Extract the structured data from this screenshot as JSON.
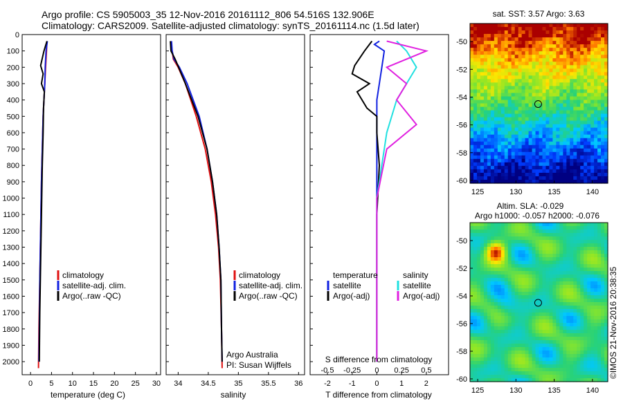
{
  "header": {
    "line1": "Argo profile: CS 5905003_35 12-Nov-2016 20161112_806 54.516S 132.906E",
    "line2": "Climatology: CARS2009. Satellite-adjusted climatology: synTS_20161114.nc (1.5d later)"
  },
  "credit": "©IMOS 21-Nov-2016 20:38:35",
  "colors": {
    "clim": "#e01010",
    "sat": "#1020e0",
    "argo": "#000000",
    "sal_sat": "#20e0e0",
    "sal_argo": "#e020e0"
  },
  "chart_data": [
    {
      "type": "line",
      "xlabel": "temperature (deg C)",
      "xlim": [
        -2,
        31
      ],
      "ylim": [
        2080,
        0
      ],
      "xticks": [
        "0",
        "5",
        "10",
        "15",
        "20",
        "25",
        "30"
      ],
      "yticks": [
        "0",
        "100",
        "200",
        "300",
        "400",
        "500",
        "600",
        "700",
        "800",
        "900",
        "1000",
        "1100",
        "1200",
        "1300",
        "1400",
        "1500",
        "1600",
        "1700",
        "1800",
        "1900",
        "2000"
      ],
      "legend": [
        "climatology",
        "satellite-adj. clim.",
        "Argo(..raw -QC)"
      ],
      "series": [
        {
          "name": "climatology",
          "x": [
            3.9,
            3.8,
            3.6,
            3.4,
            3.2,
            3.0,
            2.8,
            2.6,
            2.4,
            2.2,
            2.0,
            1.9
          ],
          "y": [
            40,
            100,
            200,
            300,
            400,
            500,
            700,
            900,
            1200,
            1500,
            1800,
            2040
          ]
        },
        {
          "name": "satellite-adj. clim.",
          "x": [
            4.0,
            3.7,
            3.5,
            3.4,
            3.2,
            3.0,
            2.8,
            2.6,
            2.4,
            2.2,
            2.1,
            2.0
          ],
          "y": [
            40,
            100,
            200,
            300,
            400,
            500,
            700,
            900,
            1200,
            1500,
            1800,
            2000
          ]
        },
        {
          "name": "Argo(..raw -QC)",
          "x": [
            3.9,
            3.2,
            2.4,
            3.0,
            2.6,
            3.3,
            3.1,
            3.0,
            2.8,
            2.6,
            2.4,
            2.2,
            2.1
          ],
          "y": [
            40,
            100,
            190,
            240,
            300,
            350,
            450,
            600,
            800,
            1100,
            1400,
            1700,
            2000
          ]
        }
      ]
    },
    {
      "type": "line",
      "xlabel": "salinity",
      "xlim": [
        33.8,
        36.1
      ],
      "ylim": [
        2080,
        0
      ],
      "xticks": [
        "34",
        "34.5",
        "35",
        "35.5",
        "36"
      ],
      "legend": [
        "climatology",
        "satellite-adj. clim.",
        "Argo(..raw -QC)"
      ],
      "annotation": [
        "Argo Australia",
        "PI: Susan Wijffels"
      ],
      "series": [
        {
          "name": "climatology",
          "x": [
            33.88,
            33.9,
            33.92,
            34.0,
            34.12,
            34.3,
            34.45,
            34.55,
            34.62,
            34.67,
            34.7,
            34.72,
            34.73
          ],
          "y": [
            40,
            100,
            150,
            200,
            300,
            500,
            700,
            900,
            1100,
            1300,
            1500,
            1800,
            2040
          ]
        },
        {
          "name": "satellite-adj. clim.",
          "x": [
            33.89,
            33.9,
            33.93,
            34.02,
            34.15,
            34.35,
            34.48,
            34.57,
            34.64,
            34.68,
            34.71,
            34.72,
            34.73
          ],
          "y": [
            40,
            100,
            150,
            200,
            300,
            500,
            700,
            900,
            1100,
            1300,
            1500,
            1800,
            2000
          ]
        },
        {
          "name": "Argo(..raw -QC)",
          "x": [
            33.87,
            33.88,
            33.95,
            34.03,
            34.12,
            34.33,
            34.48,
            34.57,
            34.64,
            34.68,
            34.71,
            34.72,
            34.73
          ],
          "y": [
            40,
            100,
            150,
            220,
            300,
            500,
            700,
            900,
            1100,
            1300,
            1500,
            1800,
            2000
          ]
        }
      ]
    },
    {
      "type": "line",
      "xlabel": "T difference from climatology",
      "xlabel2": "S difference from climatology",
      "xlim": [
        -2.7,
        2.9
      ],
      "ylim": [
        2080,
        0
      ],
      "xticks": [
        "-2",
        "-1",
        "0",
        "1",
        "2"
      ],
      "xticks2": [
        "-0.5",
        "-0.25",
        "0",
        "0.25",
        "0.5"
      ],
      "legend_temp_title": "temperature",
      "legend_sal_title": "salinity",
      "legend_labels": [
        "satellite",
        "Argo(-adj)",
        "satellite",
        "Argo(-adj)"
      ],
      "series": [
        {
          "name": "satellite",
          "x": [
            0.1,
            -0.1,
            0.3,
            0.2,
            0.1,
            0.0,
            0.0,
            0.0,
            0.0
          ],
          "y": [
            40,
            60,
            100,
            200,
            300,
            400,
            600,
            1000,
            2000
          ]
        },
        {
          "name": "Argo(-adj)",
          "x": [
            -0.2,
            -0.5,
            -0.9,
            -1.0,
            -0.3,
            -0.8,
            -0.4,
            0.0,
            0.0,
            0.1,
            0.0,
            0.0
          ],
          "y": [
            40,
            100,
            190,
            240,
            300,
            350,
            450,
            500,
            600,
            800,
            1100,
            2000
          ]
        },
        {
          "name": "satellite",
          "x": [
            0.2,
            0.3,
            0.4,
            0.3,
            0.2,
            0.1,
            0.0,
            0.0
          ],
          "y": [
            40,
            100,
            200,
            300,
            400,
            600,
            1000,
            2000
          ]
        },
        {
          "name": "Argo(-adj)",
          "x": [
            0.1,
            0.5,
            0.1,
            0.3,
            0.2,
            0.4,
            0.1,
            0.0,
            0.0
          ],
          "y": [
            40,
            100,
            200,
            300,
            400,
            550,
            700,
            1000,
            2000
          ]
        }
      ]
    },
    {
      "type": "heatmap",
      "title": "sat. SST: 3.57 Argo: 3.63",
      "xticks": [
        "125",
        "130",
        "135",
        "140"
      ],
      "yticks": [
        "-50",
        "-52",
        "-54",
        "-56",
        "-58",
        "-60"
      ],
      "xlim": [
        124,
        142
      ],
      "ylim": [
        -60.2,
        -48.7
      ],
      "marker": [
        132.9,
        -54.5
      ]
    },
    {
      "type": "heatmap",
      "title": "Altim. SLA: -0.029",
      "subtitle": "Argo h1000: -0.057 h2000: -0.076",
      "xticks": [
        "125",
        "130",
        "135",
        "140"
      ],
      "yticks": [
        "-50",
        "-52",
        "-54",
        "-56",
        "-58",
        "-60"
      ],
      "xlim": [
        124,
        142
      ],
      "ylim": [
        -60.2,
        -48.7
      ],
      "marker": [
        132.9,
        -54.5
      ]
    }
  ]
}
